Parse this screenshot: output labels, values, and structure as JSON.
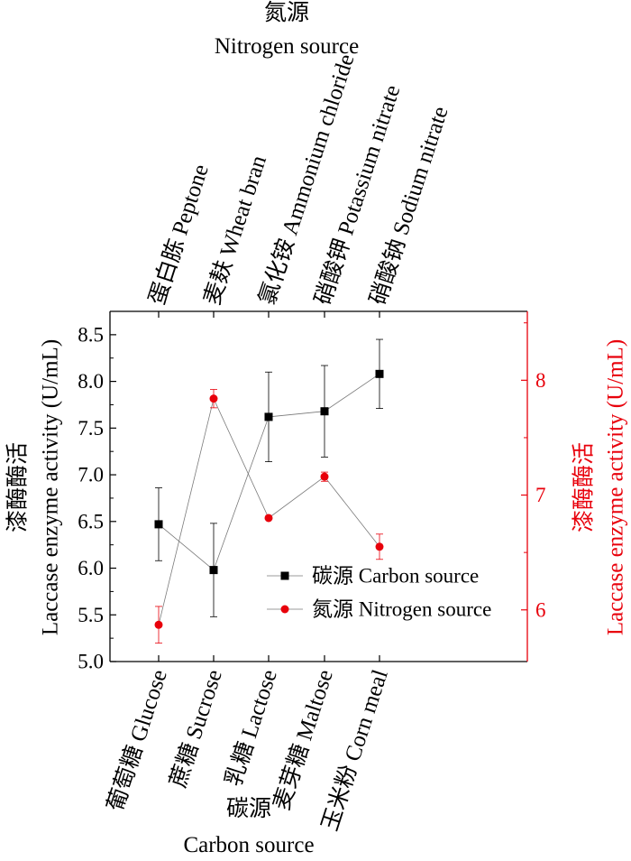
{
  "chart_data": {
    "type": "line",
    "bottom_axis": {
      "title_zh": "碳源",
      "title_en": "Carbon source",
      "categories": [
        "葡萄糖 Glucose",
        "蔗糖 Sucrose",
        "乳糖 Lactose",
        "麦芽糖 Maltose",
        "玉米粉 Corn meal"
      ]
    },
    "top_axis": {
      "title_zh": "氮源",
      "title_en": "Nitrogen source",
      "categories": [
        "蛋白胨 Peptone",
        "麦麸 Wheat bran",
        "氯化铵 Ammonium chloride",
        "硝酸钾 Potassium nitrate",
        "硝酸钠 Sodium nitrate"
      ]
    },
    "left_axis": {
      "title_zh": "漆酶酶活",
      "title_en": "Laccase enzyme activity (U/mL)",
      "ylim": [
        5.0,
        8.75
      ],
      "ticks": [
        "5.0",
        "5.5",
        "6.0",
        "6.5",
        "7.0",
        "7.5",
        "8.0",
        "8.5"
      ],
      "tick_values": [
        5.0,
        5.5,
        6.0,
        6.5,
        7.0,
        7.5,
        8.0,
        8.5
      ],
      "color": "#000000"
    },
    "right_axis": {
      "title_zh": "漆酶酶活",
      "title_en": "Laccase enzyme activity (U/mL)",
      "ylim": [
        5.55,
        8.6
      ],
      "ticks": [
        "6",
        "7",
        "8"
      ],
      "tick_values": [
        6,
        7,
        8
      ],
      "color": "#e8000b"
    },
    "series": [
      {
        "name": "碳源 Carbon source",
        "axis": "left",
        "color": "#000000",
        "marker": "square",
        "values": [
          6.47,
          5.98,
          7.62,
          7.68,
          8.08
        ],
        "errors": [
          0.39,
          0.5,
          0.48,
          0.49,
          0.37
        ]
      },
      {
        "name": "氮源 Nitrogen source",
        "axis": "right",
        "color": "#e8000b",
        "marker": "circle",
        "values": [
          5.87,
          7.84,
          6.8,
          7.16,
          6.55
        ],
        "errors": [
          0.16,
          0.08,
          0.0,
          0.04,
          0.11
        ]
      }
    ],
    "legend": {
      "placement": "bottom-right"
    },
    "grid": false
  }
}
